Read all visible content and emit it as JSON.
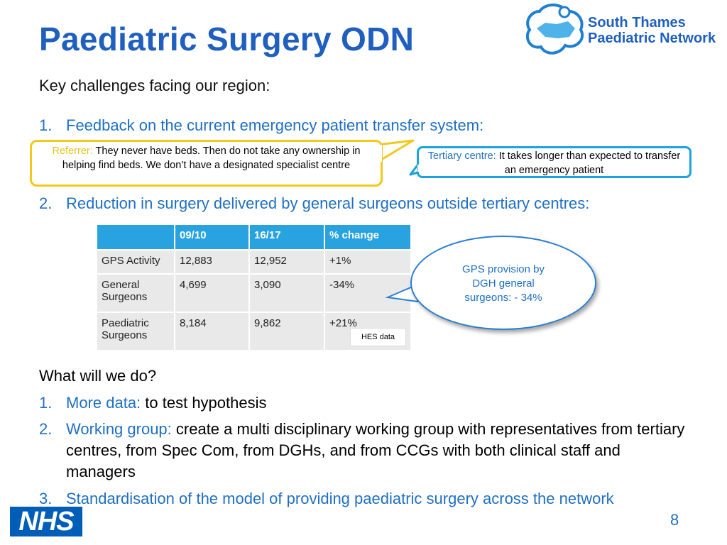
{
  "slide": {
    "title": "Paediatric Surgery ODN",
    "subtitle": "Key challenges facing our region:",
    "logo": {
      "line1": "South Thames",
      "line2": "Paediatric Network"
    },
    "nhs_logo": "NHS",
    "page_number": "8"
  },
  "challenges": [
    {
      "num": "1.",
      "text": "Feedback on the current emergency patient transfer system:"
    },
    {
      "num": "2.",
      "text": "Reduction in surgery delivered by general surgeons outside tertiary centres:"
    }
  ],
  "quotes": {
    "referrer": {
      "label": "Referrer:",
      "text": " They never have beds. Then do not take any ownership in helping find beds. We don’t have a designated specialist centre"
    },
    "tertiary": {
      "label": "Tertiary centre:",
      "text": " It takes longer than expected to transfer an emergency patient"
    }
  },
  "table": {
    "headers": [
      "",
      "09/10",
      "16/17",
      "% change"
    ],
    "rows": [
      [
        "GPS Activity",
        "12,883",
        "12,952",
        "+1%"
      ],
      [
        "General Surgeons",
        "4,699",
        "3,090",
        "-34%"
      ],
      [
        "Paediatric Surgeons",
        "8,184",
        "9,862",
        "+21%"
      ]
    ],
    "source": "HES data"
  },
  "callout": "GPS provision by DGH general surgeons: - 34%",
  "actions": {
    "heading": "What will we do?",
    "items": [
      {
        "num": "1.",
        "label": "More data:",
        "text": " to test hypothesis"
      },
      {
        "num": "2.",
        "label": "Working group:",
        "text": " create a multi disciplinary working group with representatives from tertiary centres, from Spec Com, from DGHs, and from CCGs with both clinical staff and managers"
      },
      {
        "num": "3.",
        "label": "Standardisation of the model of providing paediatric surgery across the network",
        "text": ""
      }
    ]
  },
  "colors": {
    "title": "#1f5fbf",
    "accent_blue": "#1f6fc5",
    "table_header": "#29a3e0",
    "quote_yellow": "#f2c81a",
    "quote_blue": "#1aa3e0",
    "nhs_blue": "#005eb8"
  }
}
